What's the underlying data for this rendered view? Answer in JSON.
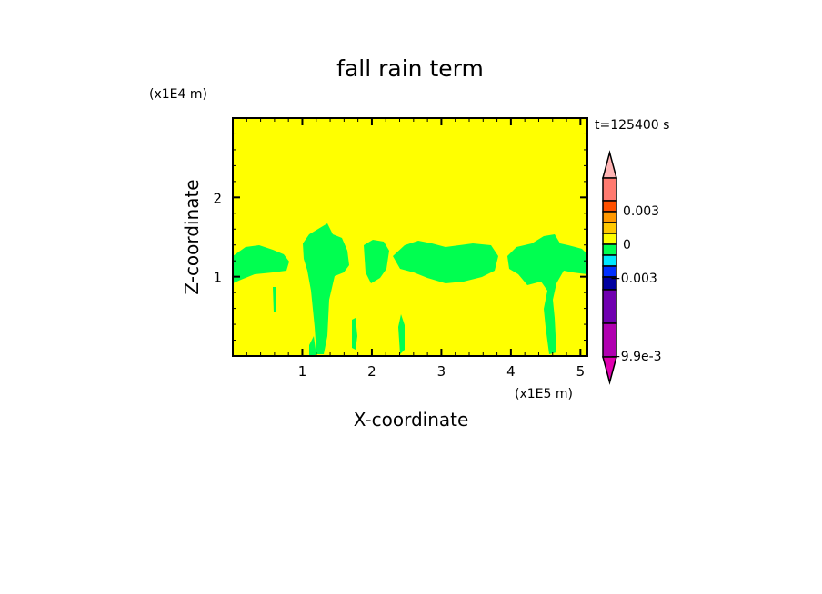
{
  "chart_data": {
    "type": "heatmap",
    "title": "fall rain term",
    "xlabel": "X-coordinate",
    "ylabel": "Z-coordinate",
    "x_unit_label": "(x1E5 m)",
    "y_unit_label": "(x1E4 m)",
    "time_label": "t=125400 s",
    "xlim": [
      0,
      5.1
    ],
    "ylim": [
      0,
      3
    ],
    "x_ticks": [
      "1",
      "2",
      "3",
      "4",
      "5"
    ],
    "y_ticks": [
      "1",
      "2"
    ],
    "x_tick_values": [
      1,
      2,
      3,
      4,
      5
    ],
    "y_tick_values": [
      1,
      2
    ],
    "background_level_color": "#ffff00",
    "feature_color": "#00ff50",
    "colorbar": {
      "labels": [
        "0.003",
        "0",
        "-0.003",
        "-9.9e-3"
      ],
      "over_color": "#ffb4b4",
      "under_color": "#e000b0",
      "bins": [
        {
          "color": "#ff7a70"
        },
        {
          "color": "#ff5000"
        },
        {
          "color": "#ff9800"
        },
        {
          "color": "#ffc800"
        },
        {
          "color": "#ffff00"
        },
        {
          "color": "#00ff50"
        },
        {
          "color": "#00e8ff"
        },
        {
          "color": "#0030ff"
        },
        {
          "color": "#0000a0"
        },
        {
          "color": "#7000b0"
        },
        {
          "color": "#b000b0"
        }
      ]
    }
  }
}
